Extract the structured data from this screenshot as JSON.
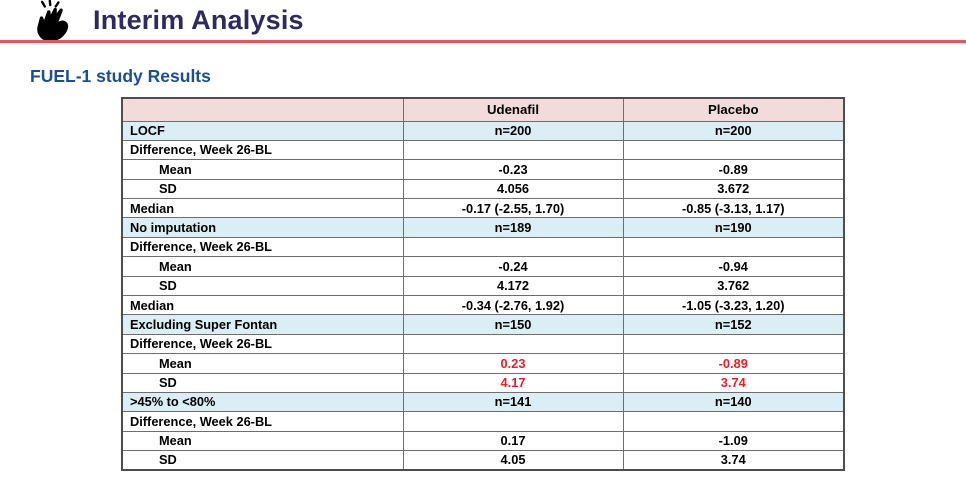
{
  "header": {
    "title": "Interim Analysis",
    "icon": "clapping-hands"
  },
  "subtitle": "FUEL-1 study Results",
  "colors": {
    "title_text": "#2e2a60",
    "subtitle_text": "#1b4e92",
    "accent_line": "#f4515b",
    "table_header_bg": "#f2dcdb",
    "section_row_bg": "#daeef3",
    "highlight_text": "#ed1c24",
    "table_border": "#6e6e6e"
  },
  "table": {
    "columns": [
      "",
      "Udenafil",
      "Placebo"
    ],
    "rows": [
      {
        "kind": "section",
        "label": "LOCF",
        "values": [
          "n=200",
          "n=200"
        ]
      },
      {
        "kind": "plain",
        "label": "Difference, Week 26-BL",
        "values": [
          "",
          ""
        ]
      },
      {
        "kind": "indent",
        "label": "Mean",
        "values": [
          "-0.23",
          "-0.89"
        ]
      },
      {
        "kind": "indent",
        "label": "SD",
        "values": [
          "4.056",
          "3.672"
        ]
      },
      {
        "kind": "plain",
        "label": "Median",
        "values": [
          "-0.17 (-2.55, 1.70)",
          "-0.85 (-3.13, 1.17)"
        ]
      },
      {
        "kind": "section",
        "label": "No imputation",
        "values": [
          "n=189",
          "n=190"
        ]
      },
      {
        "kind": "plain",
        "label": "Difference, Week 26-BL",
        "values": [
          "",
          ""
        ]
      },
      {
        "kind": "indent",
        "label": "Mean",
        "values": [
          "-0.24",
          "-0.94"
        ]
      },
      {
        "kind": "indent",
        "label": "SD",
        "values": [
          "4.172",
          "3.762"
        ]
      },
      {
        "kind": "plain",
        "label": "Median",
        "values": [
          "-0.34 (-2.76, 1.92)",
          "-1.05 (-3.23, 1.20)"
        ]
      },
      {
        "kind": "section",
        "label": "Excluding Super Fontan",
        "values": [
          "n=150",
          "n=152"
        ]
      },
      {
        "kind": "plain",
        "label": "Difference, Week 26-BL",
        "values": [
          "",
          ""
        ]
      },
      {
        "kind": "indent",
        "label": "Mean",
        "values": [
          "0.23",
          "-0.89"
        ],
        "red": true
      },
      {
        "kind": "indent",
        "label": "SD",
        "values": [
          "4.17",
          "3.74"
        ],
        "red": true
      },
      {
        "kind": "section",
        "label": ">45% to <80%",
        "values": [
          "n=141",
          "n=140"
        ]
      },
      {
        "kind": "plain",
        "label": "Difference, Week 26-BL",
        "values": [
          "",
          ""
        ]
      },
      {
        "kind": "indent",
        "label": "Mean",
        "values": [
          "0.17",
          "-1.09"
        ]
      },
      {
        "kind": "indent",
        "label": "SD",
        "values": [
          "4.05",
          "3.74"
        ]
      }
    ]
  }
}
